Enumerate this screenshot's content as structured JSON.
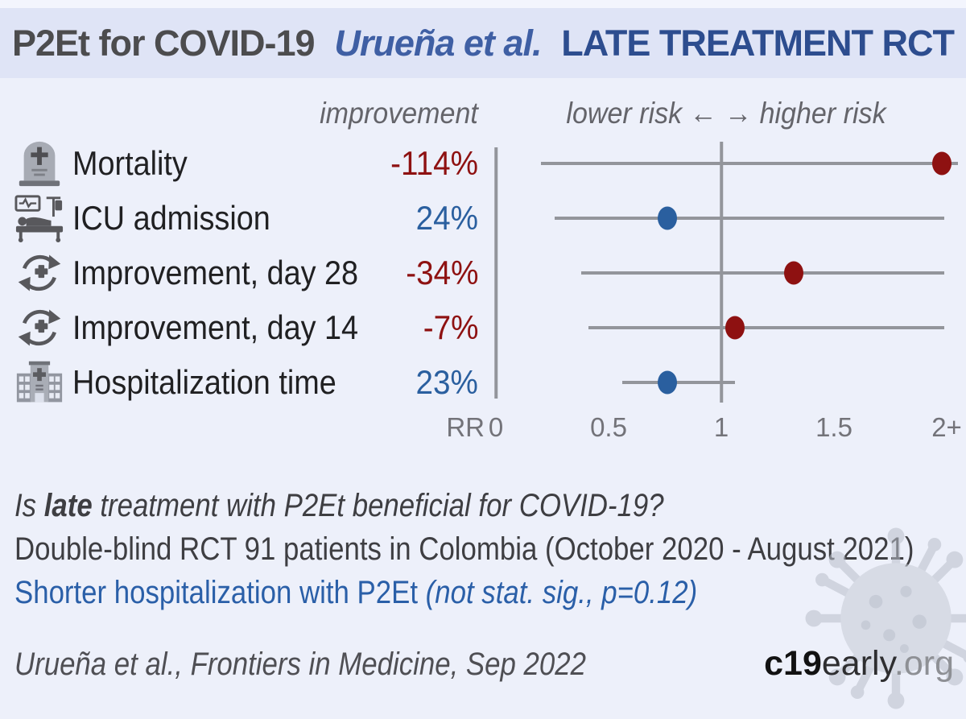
{
  "header": {
    "title_left": "P2Et for COVID-19",
    "title_authors": "Urueña et al.",
    "title_right": "LATE TREATMENT RCT"
  },
  "plot_headers": {
    "improvement": "improvement",
    "risk_direction": "lower risk ←  → higher risk"
  },
  "chart_data": {
    "type": "forest",
    "x_axis": {
      "label": "RR",
      "ticks": [
        "0",
        "0.5",
        "1",
        "1.5",
        "2+"
      ],
      "tick_values": [
        0,
        0.5,
        1,
        1.5,
        2
      ],
      "range": [
        0,
        2.05
      ],
      "reference_line": 1,
      "clip_max": 2.05
    },
    "rows": [
      {
        "label": "Mortality",
        "icon": "tombstone-icon",
        "improvement": "-114%",
        "rr": 2.14,
        "rr_plot": 1.98,
        "ci_low": 0.2,
        "ci_high": 2.05,
        "color": "#8e1111"
      },
      {
        "label": "ICU admission",
        "icon": "icu-bed-icon",
        "improvement": "24%",
        "rr": 0.76,
        "rr_plot": 0.76,
        "ci_low": 0.26,
        "ci_high": 1.99,
        "color": "#2a5f9f"
      },
      {
        "label": "Improvement, day 28",
        "icon": "recovery-icon",
        "improvement": "-34%",
        "rr": 1.34,
        "rr_plot": 1.32,
        "ci_low": 0.38,
        "ci_high": 1.99,
        "color": "#8e1111"
      },
      {
        "label": "Improvement, day 14",
        "icon": "recovery-icon",
        "improvement": "-7%",
        "rr": 1.07,
        "rr_plot": 1.06,
        "ci_low": 0.41,
        "ci_high": 1.99,
        "color": "#8e1111"
      },
      {
        "label": "Hospitalization time",
        "icon": "hospital-icon",
        "improvement": "23%",
        "rr": 0.77,
        "rr_plot": 0.76,
        "ci_low": 0.56,
        "ci_high": 1.06,
        "color": "#2a5f9f"
      }
    ]
  },
  "summary": {
    "question_prefix": "Is ",
    "question_bold": "late",
    "question_rest": " treatment with P2Et beneficial for COVID-19?",
    "design": "Double-blind RCT 91 patients in Colombia (October 2020 - August 2021)",
    "finding_main": "Shorter hospitalization with P2Et ",
    "finding_note": "(not stat. sig., p=0.12)"
  },
  "footer": {
    "citation": "Urueña et al., Frontiers in Medicine, Sep 2022",
    "site_bold": "c19",
    "site_mid": "early",
    "site_domain": ".org"
  },
  "colors": {
    "harm_red": "#8e1111",
    "benefit_blue": "#2a5f9f",
    "header_band": "#dfe4f6",
    "background": "#edf0fa",
    "line_gray": "#93959b"
  }
}
